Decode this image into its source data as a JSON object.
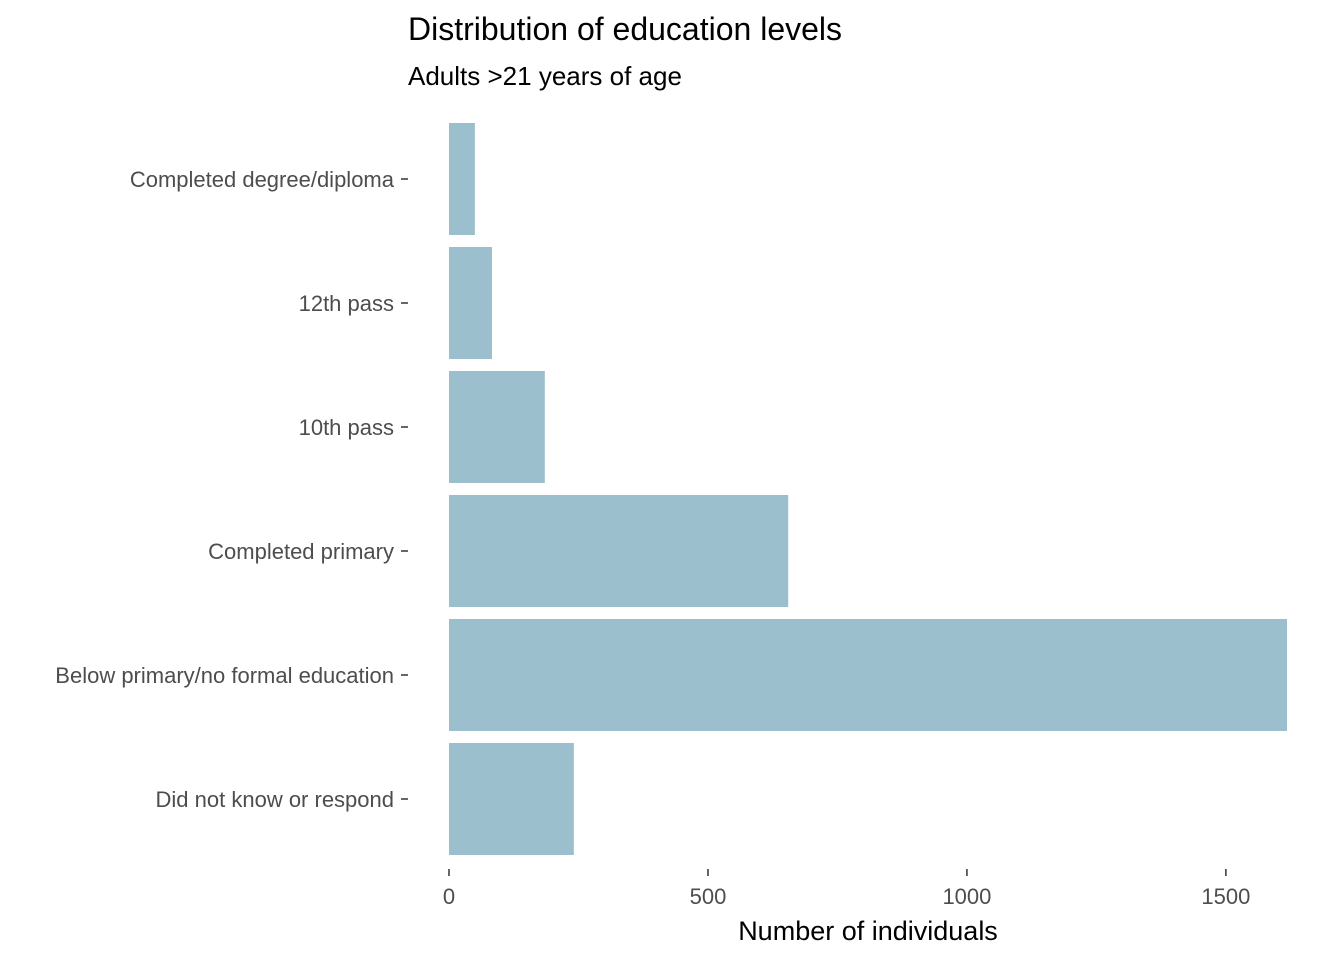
{
  "chart_data": {
    "type": "bar",
    "orientation": "horizontal",
    "title": "Distribution of education levels",
    "subtitle": "Adults >21 years of age",
    "xlabel": "Number of individuals",
    "ylabel": "",
    "categories": [
      "Completed degree/diploma",
      "12th pass",
      "10th pass",
      "Completed primary",
      "Below primary/no formal education",
      "Did not know or respond"
    ],
    "values": [
      50,
      83,
      185,
      655,
      1618,
      241
    ],
    "xlim": [
      0,
      1618
    ],
    "x_ticks": [
      0,
      500,
      1000,
      1500
    ],
    "x_tick_labels": [
      "0",
      "500",
      "1000",
      "1500"
    ],
    "bar_color": "#9bbfcc",
    "grid": false,
    "legend": "none"
  }
}
